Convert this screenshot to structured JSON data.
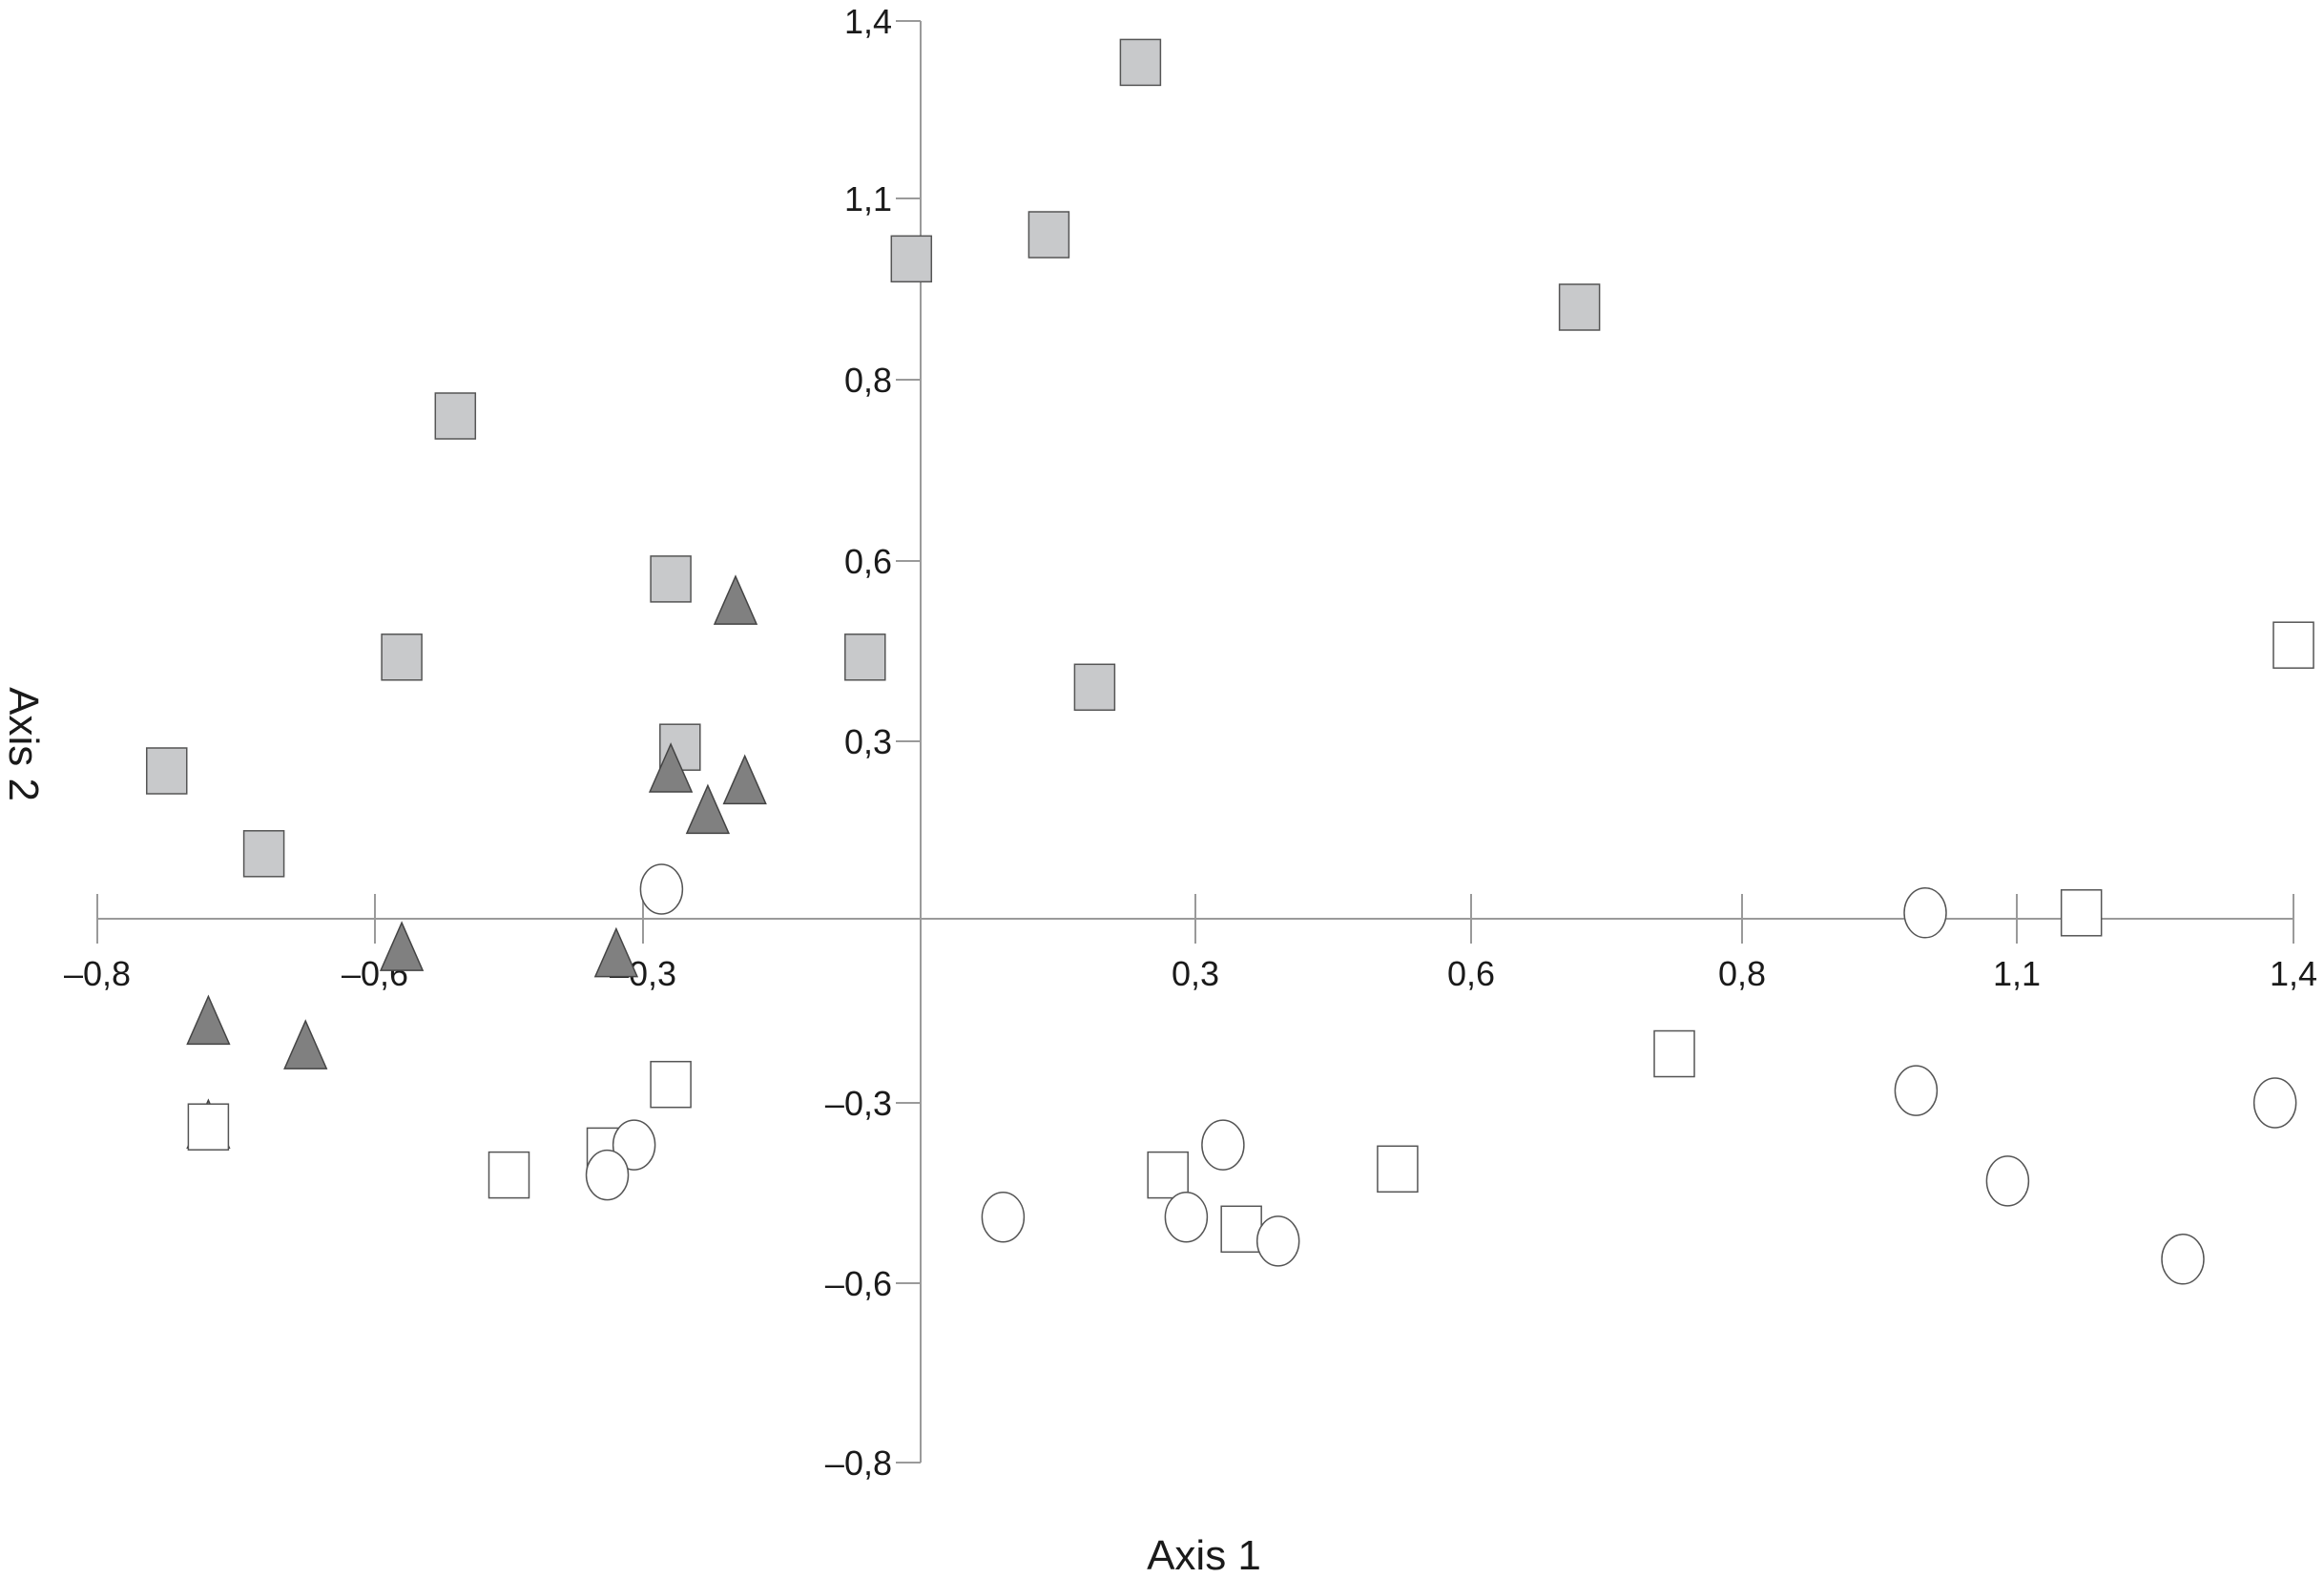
{
  "chart_data": {
    "type": "scatter",
    "title": "",
    "xlabel": "Axis 1",
    "ylabel": "Axis 2",
    "grid": false,
    "legend": "none",
    "x_axis": {
      "labeled_ticks": [
        {
          "value": -0.8,
          "label": "–0,8"
        },
        {
          "value": -0.6,
          "label": "–0,6"
        },
        {
          "value": -0.3,
          "label": "–0,3"
        },
        {
          "value": 0.3,
          "label": "0,3"
        },
        {
          "value": 0.6,
          "label": "0,6"
        },
        {
          "value": 0.8,
          "label": "0,8"
        },
        {
          "value": 1.1,
          "label": "1,1"
        },
        {
          "value": 1.4,
          "label": "1,4"
        }
      ],
      "tick_marks": [
        -0.8,
        -0.6,
        -0.3,
        0.3,
        0.6,
        0.8,
        1.1,
        1.4
      ]
    },
    "y_axis": {
      "labeled_ticks": [
        {
          "value": 1.4,
          "label": "1,4"
        },
        {
          "value": 1.1,
          "label": "1,1"
        },
        {
          "value": 0.8,
          "label": "0,8"
        },
        {
          "value": 0.6,
          "label": "0,6"
        },
        {
          "value": 0.3,
          "label": "0,3"
        },
        {
          "value": -0.3,
          "label": "–0,3"
        },
        {
          "value": -0.6,
          "label": "–0,6"
        },
        {
          "value": -0.8,
          "label": "–0,8"
        }
      ],
      "tick_marks": [
        1.4,
        1.1,
        0.8,
        0.6,
        0.3,
        -0.3,
        -0.6,
        -0.8
      ]
    },
    "series": [
      {
        "marker": "square-filled",
        "color": "#c8c9cb",
        "points": [
          [
            0.24,
            1.33
          ],
          [
            0.14,
            1.04
          ],
          [
            -0.01,
            1.0
          ],
          [
            0.68,
            0.92
          ],
          [
            -0.51,
            0.76
          ],
          [
            -0.27,
            0.57
          ],
          [
            -0.57,
            0.44
          ],
          [
            -0.06,
            0.44
          ],
          [
            0.19,
            0.39
          ],
          [
            -0.26,
            0.29
          ],
          [
            -0.75,
            0.25
          ],
          [
            -0.68,
            0.11
          ]
        ]
      },
      {
        "marker": "triangle-filled",
        "color": "#808080",
        "points": [
          [
            -0.2,
            0.53
          ],
          [
            -0.27,
            0.25
          ],
          [
            -0.19,
            0.23
          ],
          [
            -0.23,
            0.18
          ],
          [
            -0.57,
            -0.05
          ],
          [
            -0.33,
            -0.06
          ],
          [
            -0.72,
            -0.17
          ],
          [
            -0.65,
            -0.21
          ],
          [
            -0.72,
            -0.34
          ]
        ]
      },
      {
        "marker": "square-open",
        "color": "#ffffff",
        "points": [
          [
            1.4,
            0.46
          ],
          [
            1.17,
            0.01
          ],
          [
            0.75,
            -0.22
          ],
          [
            -0.27,
            -0.27
          ],
          [
            -0.72,
            -0.34
          ],
          [
            -0.34,
            -0.38
          ],
          [
            -0.45,
            -0.42
          ],
          [
            0.27,
            -0.42
          ],
          [
            0.52,
            -0.41
          ],
          [
            0.35,
            -0.51
          ]
        ]
      },
      {
        "marker": "circle-open",
        "color": "#ffffff",
        "points": [
          [
            -0.28,
            0.05
          ],
          [
            1.0,
            0.01
          ],
          [
            0.99,
            -0.28
          ],
          [
            1.38,
            -0.3
          ],
          [
            -0.31,
            -0.37
          ],
          [
            0.33,
            -0.37
          ],
          [
            -0.34,
            -0.42
          ],
          [
            1.09,
            -0.43
          ],
          [
            0.09,
            -0.49
          ],
          [
            0.29,
            -0.49
          ],
          [
            0.39,
            -0.53
          ],
          [
            1.28,
            -0.56
          ]
        ]
      }
    ]
  }
}
